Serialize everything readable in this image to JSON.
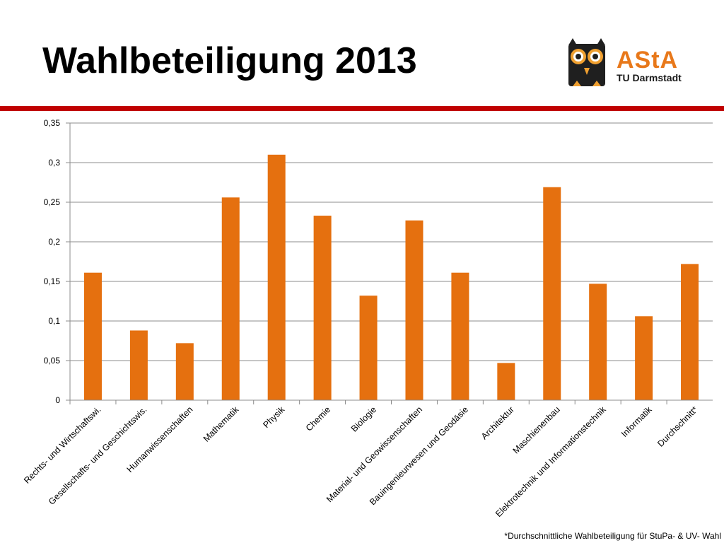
{
  "title": "Wahlbeteiligung 2013",
  "logo": {
    "name": "AStA",
    "subtitle": "TU Darmstadt"
  },
  "colors": {
    "bar": "#e5700f",
    "rule": "#c00000",
    "grid": "#8c8c8c",
    "owl": "#1f1f1f",
    "owl_eye": "#f0a030"
  },
  "footnote": "*Durchschnittliche Wahlbeteiligung für StuPa- & UV- Wahl",
  "chart_data": {
    "type": "bar",
    "title": "",
    "xlabel": "",
    "ylabel": "",
    "ylim": [
      0,
      0.35
    ],
    "yticks": [
      0,
      0.05,
      0.1,
      0.15,
      0.2,
      0.25,
      0.3,
      0.35
    ],
    "ytick_labels": [
      "0",
      "0,05",
      "0,1",
      "0,15",
      "0,2",
      "0,25",
      "0,3",
      "0,35"
    ],
    "grid": true,
    "legend": "none",
    "categories": [
      "Rechts- und Wirtschaftswi.",
      "Gesellschafts- und Geschichtswis.",
      "Humanwissenschaften",
      "Mathematik",
      "Physik",
      "Chemie",
      "Biologie",
      "Material- und Geowissenschaften",
      "Bauingenieurwesen und Geodäsie",
      "Architektur",
      "Maschienenbau",
      "Elektrotechnik und Informationstechnik",
      "Informatik",
      "Durchschnitt*"
    ],
    "values": [
      0.161,
      0.088,
      0.072,
      0.256,
      0.31,
      0.233,
      0.132,
      0.227,
      0.161,
      0.047,
      0.269,
      0.147,
      0.106,
      0.172
    ]
  }
}
